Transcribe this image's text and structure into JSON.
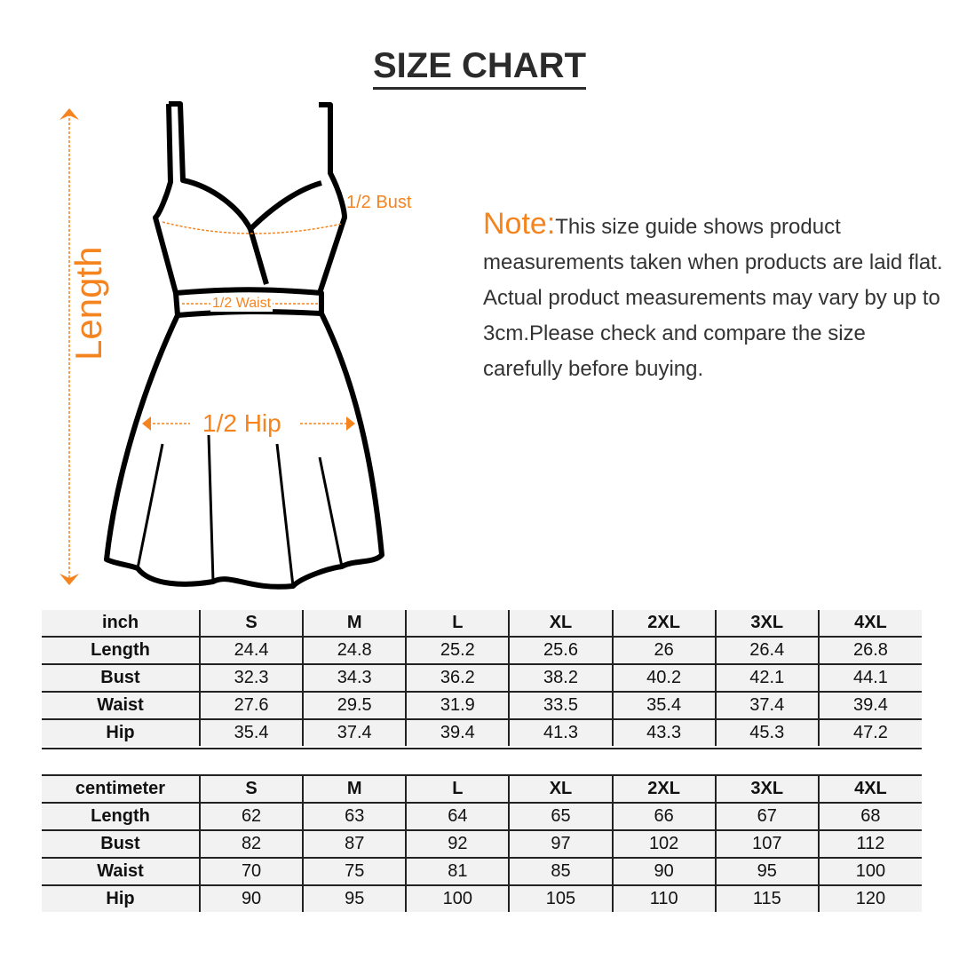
{
  "title": "SIZE CHART",
  "note": {
    "label": "Note:",
    "text": "This size guide shows product measurements taken when products are laid flat. Actual product measurements may vary by up to 3cm.Please check and compare the size carefully before buying."
  },
  "diagram": {
    "length": "Length",
    "bust": "1/2 Bust",
    "waist": "1/2 Waist",
    "hip": "1/2 Hip",
    "accent": "#F5841F"
  },
  "inch_table": {
    "header": [
      "inch",
      "S",
      "M",
      "L",
      "XL",
      "2XL",
      "3XL",
      "4XL"
    ],
    "rows": [
      [
        "Length",
        "24.4",
        "24.8",
        "25.2",
        "25.6",
        "26",
        "26.4",
        "26.8"
      ],
      [
        "Bust",
        "32.3",
        "34.3",
        "36.2",
        "38.2",
        "40.2",
        "42.1",
        "44.1"
      ],
      [
        "Waist",
        "27.6",
        "29.5",
        "31.9",
        "33.5",
        "35.4",
        "37.4",
        "39.4"
      ],
      [
        "Hip",
        "35.4",
        "37.4",
        "39.4",
        "41.3",
        "43.3",
        "45.3",
        "47.2"
      ]
    ]
  },
  "cm_table": {
    "header": [
      "centimeter",
      "S",
      "M",
      "L",
      "XL",
      "2XL",
      "3XL",
      "4XL"
    ],
    "rows": [
      [
        "Length",
        "62",
        "63",
        "64",
        "65",
        "66",
        "67",
        "68"
      ],
      [
        "Bust",
        "82",
        "87",
        "92",
        "97",
        "102",
        "107",
        "112"
      ],
      [
        "Waist",
        "70",
        "75",
        "81",
        "85",
        "90",
        "95",
        "100"
      ],
      [
        "Hip",
        "90",
        "95",
        "100",
        "105",
        "110",
        "115",
        "120"
      ]
    ]
  }
}
